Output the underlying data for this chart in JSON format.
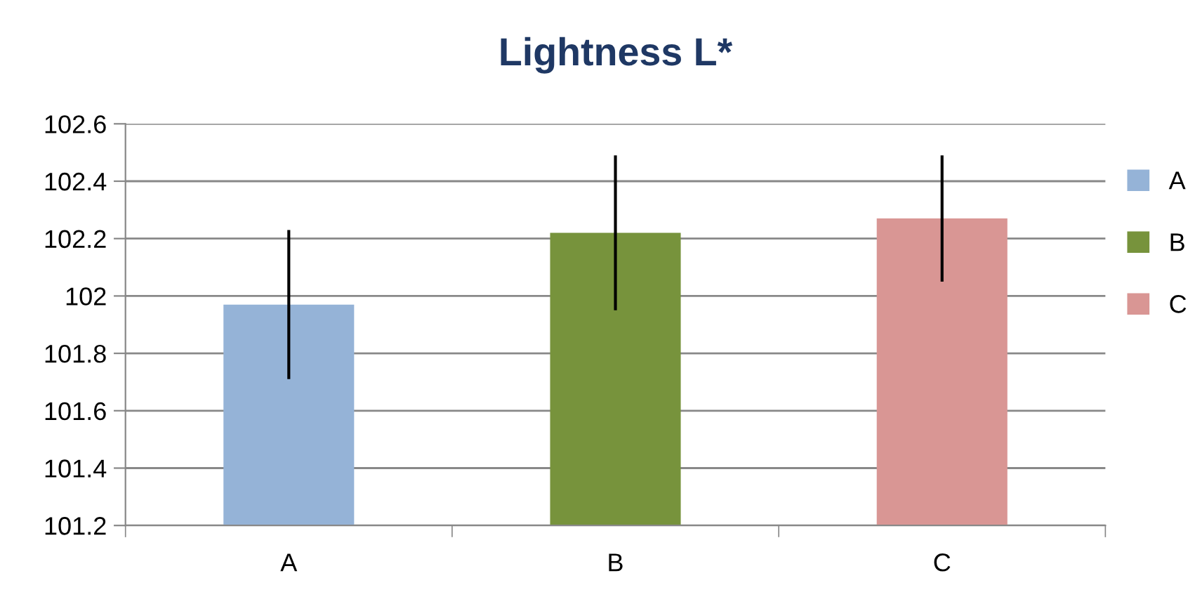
{
  "chart_data": {
    "type": "bar",
    "title": "Lightness L*",
    "categories": [
      "A",
      "B",
      "C"
    ],
    "series": [
      {
        "name": "A",
        "color": "#95b3d7",
        "values": [
          101.97,
          null,
          null
        ],
        "errors": [
          0.26,
          null,
          null
        ]
      },
      {
        "name": "B",
        "color": "#77933c",
        "values": [
          null,
          102.22,
          null
        ],
        "errors": [
          null,
          0.27,
          null
        ]
      },
      {
        "name": "C",
        "color": "#d99694",
        "values": [
          null,
          null,
          102.27
        ],
        "errors": [
          null,
          null,
          0.22
        ]
      }
    ],
    "ylim": [
      101.2,
      102.6
    ],
    "yticks": [
      101.2,
      101.4,
      101.6,
      101.8,
      102,
      102.2,
      102.4,
      102.6
    ],
    "grid": "y",
    "legend": "right"
  }
}
